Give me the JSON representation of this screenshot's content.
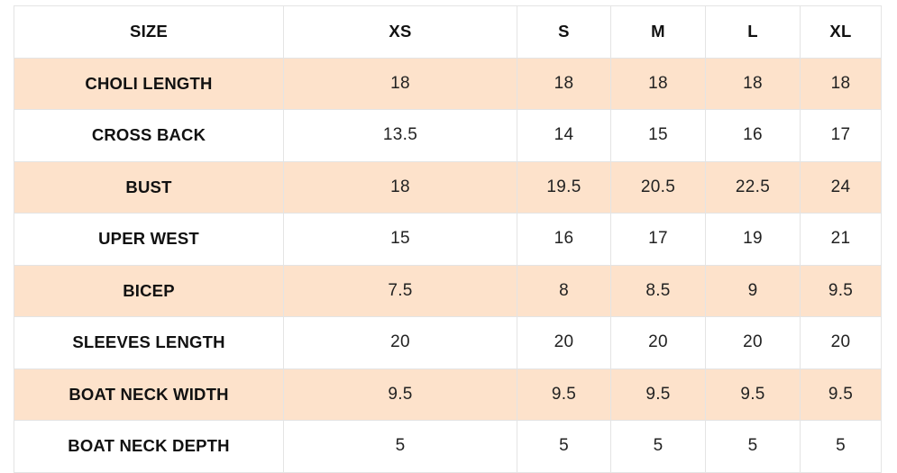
{
  "size_chart": {
    "header": [
      "SIZE",
      "XS",
      "S",
      "M",
      "L",
      "XL"
    ],
    "rows": [
      {
        "label": "CHOLI LENGTH",
        "values": [
          "18",
          "18",
          "18",
          "18",
          "18"
        ]
      },
      {
        "label": "CROSS BACK",
        "values": [
          "13.5",
          "14",
          "15",
          "16",
          "17"
        ]
      },
      {
        "label": "BUST",
        "values": [
          "18",
          "19.5",
          "20.5",
          "22.5",
          "24"
        ]
      },
      {
        "label": "UPER WEST",
        "values": [
          "15",
          "16",
          "17",
          "19",
          "21"
        ]
      },
      {
        "label": "BICEP",
        "values": [
          "7.5",
          "8",
          "8.5",
          "9",
          "9.5"
        ]
      },
      {
        "label": "SLEEVES LENGTH",
        "values": [
          "20",
          "20",
          "20",
          "20",
          "20"
        ]
      },
      {
        "label": "BOAT NECK WIDTH",
        "values": [
          "9.5",
          "9.5",
          "9.5",
          "9.5",
          "9.5"
        ]
      },
      {
        "label": "BOAT NECK DEPTH",
        "values": [
          "5",
          "5",
          "5",
          "5",
          "5"
        ]
      }
    ]
  },
  "colors": {
    "shaded_row": "#fde2cb",
    "plain_row": "#ffffff",
    "border": "#e4e4e4"
  }
}
